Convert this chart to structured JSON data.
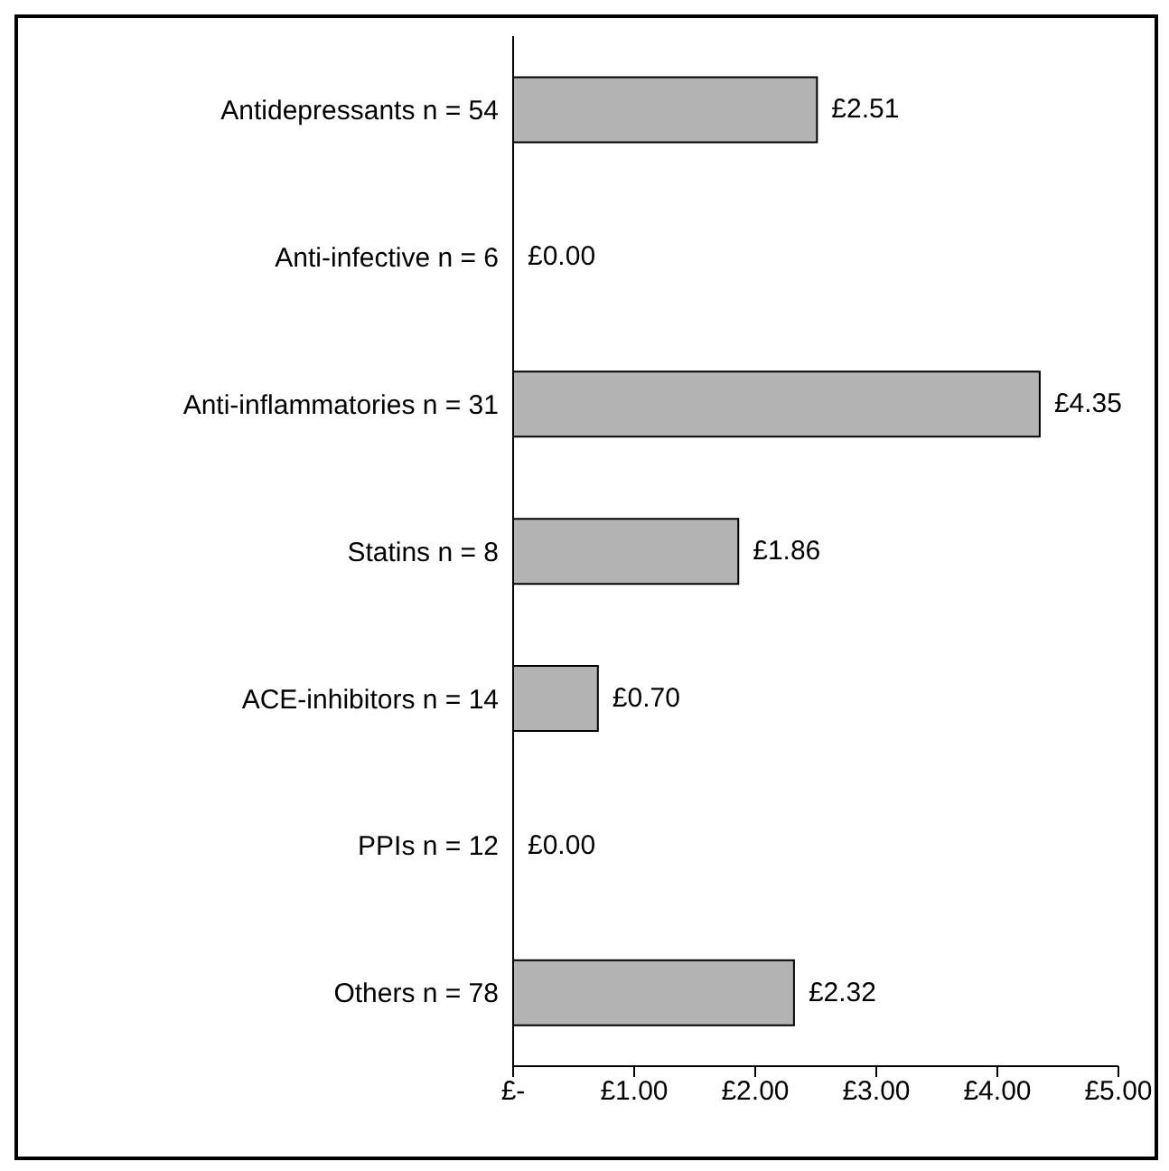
{
  "chart_data": {
    "type": "bar",
    "orientation": "horizontal",
    "categories": [
      "Antidepressants n = 54",
      "Anti-infective n = 6",
      "Anti-inflammatories n = 31",
      "Statins n = 8",
      "ACE-inhibitors n = 14",
      "PPIs n = 12",
      "Others n = 78"
    ],
    "values": [
      2.51,
      0,
      4.35,
      1.86,
      0.7,
      0,
      2.32
    ],
    "value_labels": [
      "£2.51",
      "£0.00",
      "£4.35",
      "£1.86",
      "£0.70",
      "£0.00",
      "£2.32"
    ],
    "color": "#b3b3b3",
    "xlim": [
      0,
      5
    ],
    "xticks": [
      {
        "value": 0,
        "label": "£-"
      },
      {
        "value": 1,
        "label": "£1.00"
      },
      {
        "value": 2,
        "label": "£2.00"
      },
      {
        "value": 3,
        "label": "£3.00"
      },
      {
        "value": 4,
        "label": "£4.00"
      },
      {
        "value": 5,
        "label": "£5.00"
      }
    ],
    "grid": false,
    "legend": false
  }
}
